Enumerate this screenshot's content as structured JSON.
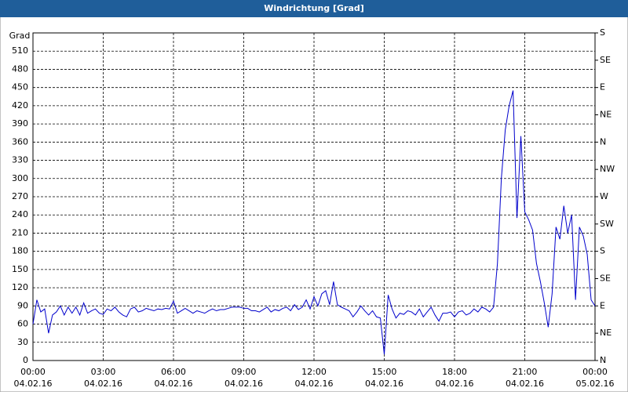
{
  "chart_data": {
    "type": "line",
    "title": "Windrichtung [Grad]",
    "y_label": "Grad",
    "x": [
      0,
      10,
      20,
      30,
      40,
      50,
      60,
      70,
      80,
      90,
      100,
      110,
      120,
      130,
      140,
      150,
      160,
      170,
      180,
      190,
      200,
      210,
      220,
      230,
      240,
      250,
      260,
      270,
      280,
      290,
      300,
      310,
      320,
      330,
      340,
      350,
      360,
      370,
      380,
      390,
      400,
      410,
      420,
      430,
      440,
      450,
      460,
      470,
      480,
      490,
      500,
      510,
      520,
      530,
      540,
      550,
      560,
      570,
      580,
      590,
      600,
      610,
      620,
      630,
      640,
      650,
      660,
      670,
      680,
      690,
      700,
      710,
      720,
      730,
      740,
      750,
      760,
      770,
      780,
      790,
      800,
      810,
      820,
      830,
      840,
      850,
      860,
      870,
      880,
      890,
      900,
      910,
      920,
      930,
      940,
      950,
      960,
      970,
      980,
      990,
      1000,
      1010,
      1020,
      1030,
      1040,
      1050,
      1060,
      1070,
      1080,
      1090,
      1100,
      1110,
      1120,
      1130,
      1140,
      1150,
      1160,
      1170,
      1180,
      1190,
      1200,
      1210,
      1220,
      1230,
      1240,
      1250,
      1260,
      1270,
      1280,
      1290,
      1300,
      1310,
      1320,
      1330,
      1340,
      1350,
      1360,
      1370,
      1380,
      1390,
      1400,
      1410,
      1420,
      1430,
      1440
    ],
    "series": [
      {
        "color": "#0000cc",
        "values": [
          60,
          100,
          80,
          85,
          45,
          75,
          80,
          90,
          75,
          88,
          78,
          88,
          75,
          95,
          78,
          82,
          85,
          78,
          76,
          85,
          82,
          88,
          80,
          75,
          72,
          85,
          88,
          80,
          82,
          86,
          84,
          82,
          85,
          84,
          86,
          85,
          98,
          78,
          82,
          86,
          82,
          78,
          82,
          80,
          78,
          82,
          85,
          82,
          84,
          84,
          86,
          88,
          88,
          88,
          86,
          86,
          82,
          82,
          80,
          84,
          88,
          80,
          84,
          82,
          86,
          88,
          82,
          92,
          84,
          88,
          100,
          85,
          105,
          90,
          110,
          115,
          92,
          130,
          92,
          88,
          85,
          82,
          72,
          80,
          90,
          82,
          75,
          82,
          72,
          70,
          10,
          108,
          85,
          70,
          78,
          76,
          82,
          80,
          75,
          85,
          72,
          80,
          88,
          75,
          65,
          78,
          78,
          80,
          72,
          80,
          82,
          75,
          78,
          85,
          80,
          88,
          85,
          80,
          88,
          160,
          300,
          380,
          420,
          445,
          235,
          370,
          245,
          232,
          215,
          160,
          130,
          95,
          55,
          110,
          220,
          200,
          255,
          210,
          240,
          100,
          220,
          205,
          175,
          100,
          90
        ]
      }
    ],
    "xlim": [
      0,
      1440
    ],
    "xticks": [
      {
        "value": 0,
        "label": "00:00",
        "date": "04.02.16"
      },
      {
        "value": 180,
        "label": "03:00",
        "date": "04.02.16"
      },
      {
        "value": 360,
        "label": "06:00",
        "date": "04.02.16"
      },
      {
        "value": 540,
        "label": "09:00",
        "date": "04.02.16"
      },
      {
        "value": 720,
        "label": "12:00",
        "date": "04.02.16"
      },
      {
        "value": 900,
        "label": "15:00",
        "date": "04.02.16"
      },
      {
        "value": 1080,
        "label": "18:00",
        "date": "04.02.16"
      },
      {
        "value": 1260,
        "label": "21:00",
        "date": "04.02.16"
      },
      {
        "value": 1440,
        "label": "00:00",
        "date": "05.02.16"
      }
    ],
    "ylim": [
      0,
      540
    ],
    "yticks": [
      0,
      30,
      60,
      90,
      120,
      150,
      180,
      210,
      240,
      270,
      300,
      330,
      360,
      390,
      420,
      450,
      480,
      510
    ],
    "y2lim": [
      0,
      540
    ],
    "y2ticks": [
      {
        "value": 0,
        "label": "N"
      },
      {
        "value": 45,
        "label": "NE"
      },
      {
        "value": 90,
        "label": "E"
      },
      {
        "value": 135,
        "label": "SE"
      },
      {
        "value": 180,
        "label": "S"
      },
      {
        "value": 225,
        "label": "SW"
      },
      {
        "value": 270,
        "label": "W"
      },
      {
        "value": 315,
        "label": "NW"
      },
      {
        "value": 360,
        "label": "N"
      },
      {
        "value": 405,
        "label": "NE"
      },
      {
        "value": 450,
        "label": "E"
      },
      {
        "value": 495,
        "label": "SE"
      },
      {
        "value": 540,
        "label": "S"
      }
    ],
    "grid": true
  }
}
